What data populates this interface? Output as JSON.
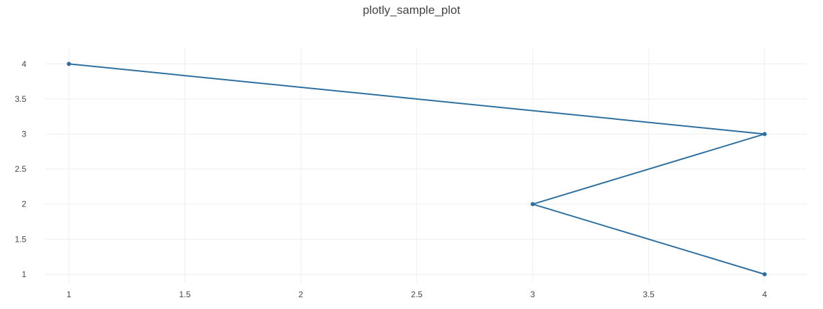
{
  "chart_data": {
    "type": "line",
    "title": "plotly_sample_plot",
    "xlabel": "",
    "ylabel": "",
    "xlim": [
      0.9,
      4.18
    ],
    "ylim": [
      0.88,
      4.22
    ],
    "x_ticks": [
      1,
      1.5,
      2,
      2.5,
      3,
      3.5,
      4
    ],
    "x_tick_labels": [
      "1",
      "1.5",
      "2",
      "2.5",
      "3",
      "3.5",
      "4"
    ],
    "y_ticks": [
      1,
      1.5,
      2,
      2.5,
      3,
      3.5,
      4
    ],
    "y_tick_labels": [
      "1",
      "1.5",
      "2",
      "2.5",
      "3",
      "3.5",
      "4"
    ],
    "grid": true,
    "legend": "none",
    "series": [
      {
        "x": [
          1,
          4,
          3,
          4
        ],
        "y": [
          4,
          3,
          2,
          1
        ],
        "mode": "lines+markers",
        "color": "#2c6f9e"
      }
    ]
  }
}
